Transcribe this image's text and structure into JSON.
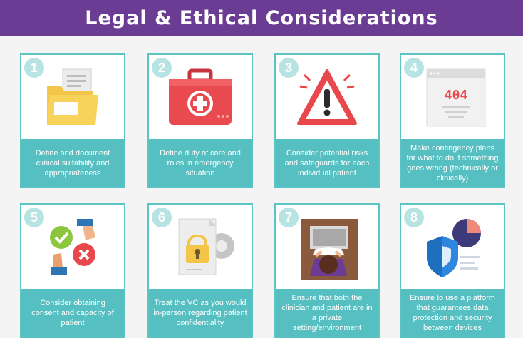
{
  "title": "Legal & Ethical Considerations",
  "cards": [
    {
      "number": "1",
      "text": "Define and document clinical suitability and appropriateness",
      "icon": "folder-documents-icon"
    },
    {
      "number": "2",
      "text": "Define duty of care and roles in emergency situation",
      "icon": "first-aid-kit-icon"
    },
    {
      "number": "3",
      "text": "Consider potential risks and safeguards for each individual patient",
      "icon": "warning-triangle-icon"
    },
    {
      "number": "4",
      "text": "Make contingency plans for what to do if something goes wrong (technically or clinically)",
      "icon": "error-404-page-icon",
      "page_code": "404"
    },
    {
      "number": "5",
      "text": "Consider obtaining consent and capacity of patient",
      "icon": "consent-hands-icon"
    },
    {
      "number": "6",
      "text": "Treat the VC as you would in-person regarding patient confidentiality",
      "icon": "locked-document-icon"
    },
    {
      "number": "7",
      "text": "Ensure that both the clinician and patient are in a private setting/environment",
      "icon": "person-at-laptop-icon"
    },
    {
      "number": "8",
      "text": "Ensure to use a platform that guarantees data protection and security between devices",
      "icon": "security-shield-icon"
    }
  ],
  "colors": {
    "banner": "#6b3c93",
    "teal": "#55bfc1",
    "badge": "#b7e3e3"
  }
}
